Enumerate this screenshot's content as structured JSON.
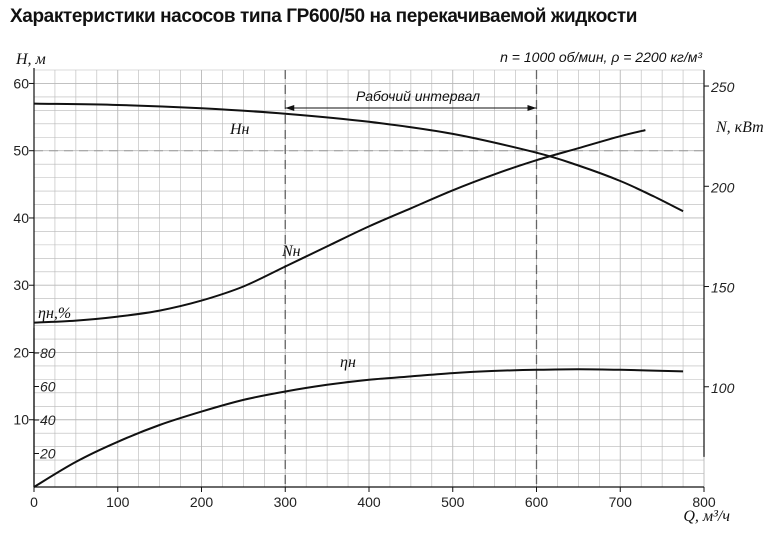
{
  "chart_data": {
    "type": "line",
    "title": "Характеристики насосов типа  ГР600/50 на перекачиваемой жидкости",
    "subtitle": "n = 1000 об/мин, ρ = 2200 кг/м³",
    "xlabel": "Q, м³/ч",
    "xlim": [
      0,
      800
    ],
    "x_ticks": [
      "0",
      "100",
      "200",
      "300",
      "400",
      "500",
      "600",
      "700",
      "800"
    ],
    "axes": {
      "H": {
        "label": "H, м",
        "lim": [
          0,
          60
        ],
        "ticks": [
          "10",
          "20",
          "30",
          "40",
          "50",
          "60"
        ]
      },
      "N": {
        "label": "N, кВт",
        "lim": [
          50,
          258
        ],
        "ticks": [
          "100",
          "150",
          "200",
          "250"
        ]
      },
      "eta": {
        "label": "ηн,%",
        "lim": [
          0,
          100
        ],
        "ticks": [
          "20",
          "40",
          "60",
          "80"
        ]
      }
    },
    "series": [
      {
        "name": "Hн",
        "axis": "H",
        "x": [
          0,
          100,
          200,
          300,
          400,
          500,
          600,
          650,
          700,
          740,
          775
        ],
        "y": [
          57,
          56.8,
          56.3,
          55.5,
          54.3,
          52.5,
          49.7,
          47.8,
          45.5,
          43.2,
          41
        ]
      },
      {
        "name": "Nн",
        "axis": "N",
        "x": [
          0,
          50,
          100,
          150,
          200,
          250,
          300,
          350,
          400,
          450,
          500,
          550,
          600,
          650,
          700,
          730
        ],
        "y": [
          132,
          133,
          135,
          138,
          143,
          150,
          160,
          170,
          180,
          189,
          198,
          206,
          213,
          219,
          225,
          228
        ]
      },
      {
        "name": "ηн",
        "axis": "eta",
        "x": [
          0,
          50,
          100,
          150,
          200,
          250,
          300,
          350,
          400,
          450,
          500,
          550,
          600,
          650,
          700,
          775
        ],
        "y": [
          0,
          15,
          27,
          37,
          45,
          52,
          57,
          61,
          64,
          66,
          68,
          69.3,
          70,
          70.3,
          70,
          69
        ]
      }
    ],
    "annotations": [
      {
        "text": "Рабочий интервал",
        "x_from": 300,
        "x_to": 600
      }
    ],
    "reference_lines": {
      "vertical_x": [
        300,
        600
      ],
      "horizontal_H": 50
    },
    "grid": true,
    "colors": {
      "curve": "#111111",
      "grid": "#b8b8b8",
      "axis": "#111111",
      "dashed": "#666666"
    }
  }
}
